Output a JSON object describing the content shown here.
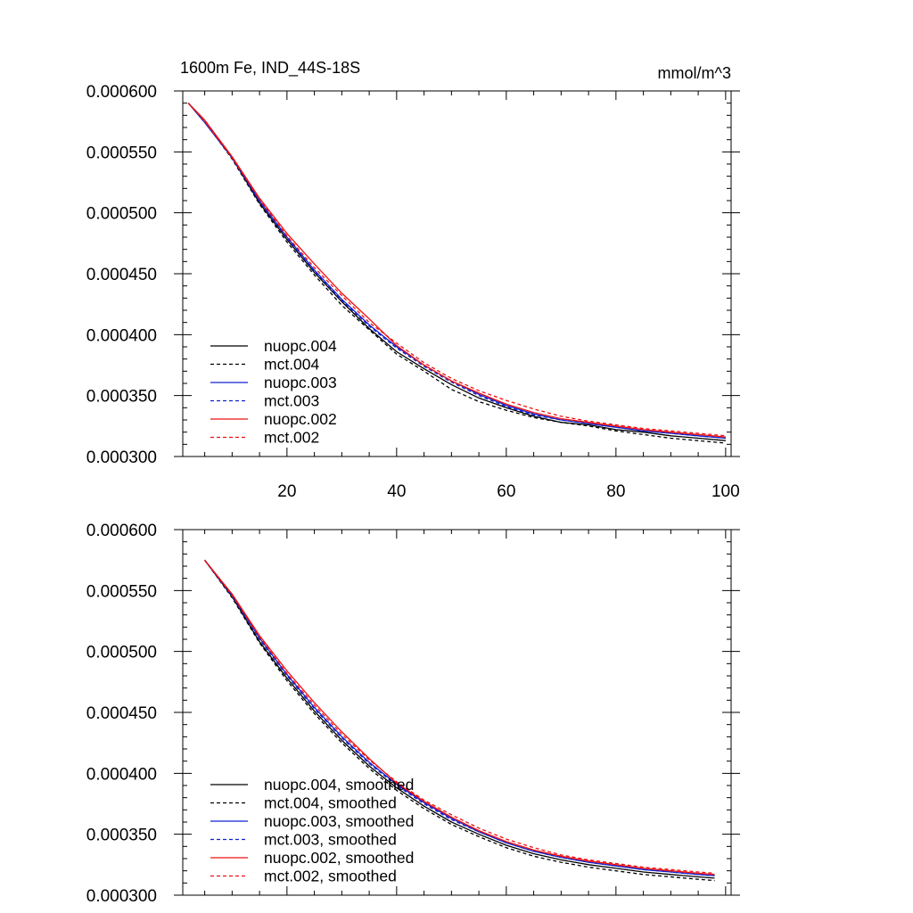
{
  "chart_data": [
    {
      "type": "line",
      "title": "1600m Fe, IND_44S-18S",
      "units": "mmol/m^3",
      "xlabel": "",
      "ylabel": "",
      "xlim": [
        1,
        101
      ],
      "ylim": [
        0.0003,
        0.0006
      ],
      "xticks": [
        20,
        40,
        60,
        80,
        100
      ],
      "xtick_labels": [
        "20",
        "40",
        "60",
        "80",
        "100"
      ],
      "yticks": [
        0.0003,
        0.00035,
        0.0004,
        0.00045,
        0.0005,
        0.00055,
        0.0006
      ],
      "ytick_labels": [
        "0.000300",
        "0.000350",
        "0.000400",
        "0.000450",
        "0.000500",
        "0.000550",
        "0.000600"
      ],
      "legend_position": "bottom-left",
      "x": [
        2,
        5,
        10,
        15,
        20,
        25,
        30,
        35,
        40,
        45,
        50,
        55,
        60,
        65,
        70,
        75,
        80,
        85,
        90,
        95,
        100
      ],
      "series": [
        {
          "name": "nuopc.004",
          "color": "#000000",
          "dash": "solid",
          "values": [
            0.00059,
            0.000576,
            0.000545,
            0.000508,
            0.000478,
            0.000451,
            0.000427,
            0.000405,
            0.000386,
            0.000372,
            0.000359,
            0.000348,
            0.00034,
            0.000333,
            0.000328,
            0.000326,
            0.000322,
            0.00032,
            0.000317,
            0.000315,
            0.000313
          ]
        },
        {
          "name": "mct.004",
          "color": "#000000",
          "dash": "dashed",
          "values": [
            0.00059,
            0.000575,
            0.000544,
            0.000507,
            0.000476,
            0.000449,
            0.000424,
            0.000404,
            0.000384,
            0.00037,
            0.000355,
            0.000345,
            0.000338,
            0.000332,
            0.000328,
            0.000325,
            0.000321,
            0.000318,
            0.000315,
            0.000313,
            0.000311
          ]
        },
        {
          "name": "nuopc.003",
          "color": "#1020d0",
          "dash": "solid",
          "values": [
            0.00059,
            0.000574,
            0.000545,
            0.00051,
            0.00048,
            0.000453,
            0.000429,
            0.000408,
            0.00039,
            0.000375,
            0.000362,
            0.000351,
            0.000342,
            0.000335,
            0.00033,
            0.000327,
            0.000324,
            0.000321,
            0.000319,
            0.000317,
            0.000315
          ]
        },
        {
          "name": "mct.003",
          "color": "#1020d0",
          "dash": "dashed",
          "values": [
            0.00059,
            0.000575,
            0.000545,
            0.000509,
            0.000479,
            0.000452,
            0.000428,
            0.000407,
            0.000389,
            0.000374,
            0.000361,
            0.00035,
            0.000341,
            0.000334,
            0.00033,
            0.000327,
            0.000324,
            0.000321,
            0.000319,
            0.000317,
            0.000315
          ]
        },
        {
          "name": "nuopc.002",
          "color": "#ee1010",
          "dash": "solid",
          "values": [
            0.00059,
            0.000576,
            0.000546,
            0.000512,
            0.000483,
            0.000458,
            0.000434,
            0.000413,
            0.000391,
            0.000375,
            0.000362,
            0.000352,
            0.000343,
            0.000336,
            0.000331,
            0.000328,
            0.000325,
            0.000322,
            0.00032,
            0.000318,
            0.000316
          ]
        },
        {
          "name": "mct.002",
          "color": "#ee1010",
          "dash": "dashed",
          "values": [
            0.00059,
            0.000575,
            0.000545,
            0.000511,
            0.000481,
            0.000455,
            0.000432,
            0.00041,
            0.000393,
            0.000377,
            0.000364,
            0.000354,
            0.000346,
            0.000339,
            0.000333,
            0.000329,
            0.000326,
            0.000323,
            0.000321,
            0.000319,
            0.000317
          ]
        }
      ]
    },
    {
      "type": "line",
      "title": "",
      "units": "",
      "xlabel": "",
      "ylabel": "",
      "xlim": [
        1,
        101
      ],
      "ylim": [
        0.0003,
        0.0006
      ],
      "xticks": [
        20,
        40,
        60,
        80,
        100
      ],
      "xtick_labels": [],
      "yticks": [
        0.0003,
        0.00035,
        0.0004,
        0.00045,
        0.0005,
        0.00055,
        0.0006
      ],
      "ytick_labels": [
        "0.000300",
        "0.000350",
        "0.000400",
        "0.000450",
        "0.000500",
        "0.000550",
        "0.000600"
      ],
      "legend_position": "bottom-left",
      "x": [
        5,
        10,
        15,
        20,
        25,
        30,
        35,
        40,
        45,
        50,
        55,
        60,
        65,
        70,
        75,
        80,
        85,
        90,
        95,
        98
      ],
      "series": [
        {
          "name": "nuopc.004, smoothed",
          "color": "#000000",
          "dash": "solid",
          "values": [
            0.000575,
            0.000545,
            0.000508,
            0.000478,
            0.000451,
            0.000427,
            0.000406,
            0.000388,
            0.000373,
            0.00036,
            0.00035,
            0.000341,
            0.000334,
            0.000329,
            0.000325,
            0.000322,
            0.000319,
            0.000317,
            0.000315,
            0.000314
          ]
        },
        {
          "name": "mct.004, smoothed",
          "color": "#000000",
          "dash": "dashed",
          "values": [
            0.000575,
            0.000544,
            0.000507,
            0.000476,
            0.000449,
            0.000425,
            0.000404,
            0.000386,
            0.000371,
            0.000358,
            0.000348,
            0.000339,
            0.000332,
            0.000327,
            0.000323,
            0.00032,
            0.000317,
            0.000315,
            0.000313,
            0.000312
          ]
        },
        {
          "name": "nuopc.003, smoothed",
          "color": "#1020d0",
          "dash": "solid",
          "values": [
            0.000575,
            0.000546,
            0.000511,
            0.000481,
            0.000454,
            0.00043,
            0.000409,
            0.000391,
            0.000376,
            0.000363,
            0.000352,
            0.000343,
            0.000336,
            0.000331,
            0.000327,
            0.000324,
            0.000321,
            0.000319,
            0.000317,
            0.000316
          ]
        },
        {
          "name": "mct.003, smoothed",
          "color": "#1020d0",
          "dash": "dashed",
          "values": [
            0.000575,
            0.000545,
            0.00051,
            0.00048,
            0.000453,
            0.000429,
            0.000408,
            0.00039,
            0.000375,
            0.000362,
            0.000352,
            0.000343,
            0.000336,
            0.000331,
            0.000327,
            0.000324,
            0.000321,
            0.000319,
            0.000317,
            0.000316
          ]
        },
        {
          "name": "nuopc.002, smoothed",
          "color": "#ee1010",
          "dash": "solid",
          "values": [
            0.000575,
            0.000547,
            0.000513,
            0.000484,
            0.000458,
            0.000434,
            0.000412,
            0.000392,
            0.000377,
            0.000364,
            0.000353,
            0.000344,
            0.000337,
            0.000332,
            0.000328,
            0.000325,
            0.000322,
            0.00032,
            0.000318,
            0.000317
          ]
        },
        {
          "name": "mct.002, smoothed",
          "color": "#ee1010",
          "dash": "dashed",
          "values": [
            0.000575,
            0.000546,
            0.000512,
            0.000482,
            0.000456,
            0.000432,
            0.000411,
            0.000393,
            0.000378,
            0.000366,
            0.000355,
            0.000346,
            0.000339,
            0.000333,
            0.000329,
            0.000326,
            0.000323,
            0.000321,
            0.000319,
            0.000318
          ]
        }
      ]
    }
  ]
}
